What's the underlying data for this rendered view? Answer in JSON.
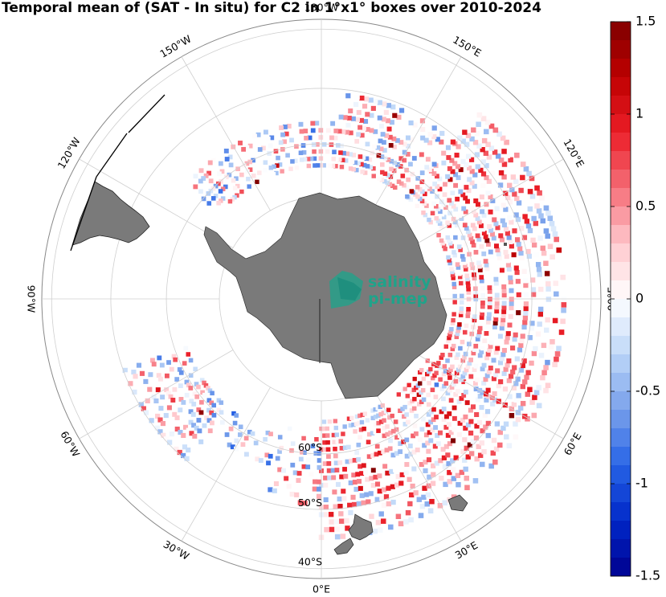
{
  "title": "Temporal mean of (SAT - In situ) for C2 in 1°x1° boxes over 2010-2024",
  "map": {
    "projection": "south-polar-stereographic",
    "lon_labels": [
      {
        "text": "0°E",
        "lon": 0
      },
      {
        "text": "30°E",
        "lon": 30
      },
      {
        "text": "60°E",
        "lon": 60
      },
      {
        "text": "90°E",
        "lon": 90
      },
      {
        "text": "120°E",
        "lon": 120
      },
      {
        "text": "150°E",
        "lon": 150
      },
      {
        "text": "180°W",
        "lon": 180
      },
      {
        "text": "150°W",
        "lon": -150
      },
      {
        "text": "120°W",
        "lon": -120
      },
      {
        "text": "90°W",
        "lon": -90
      },
      {
        "text": "60°W",
        "lon": -60
      },
      {
        "text": "30°W",
        "lon": -30
      }
    ],
    "lat_labels": [
      {
        "text": "60°S",
        "lat": -60
      },
      {
        "text": "50°S",
        "lat": -50
      },
      {
        "text": "40°S",
        "lat": -40
      }
    ],
    "land_color": "#7a7a7a",
    "grid_color": "#cfcfcf"
  },
  "colorbar": {
    "min": -1.5,
    "max": 1.5,
    "ticks": [
      {
        "value": 1.5,
        "label": "1.5"
      },
      {
        "value": 1,
        "label": "1"
      },
      {
        "value": 0.5,
        "label": "0.5"
      },
      {
        "value": 0,
        "label": "0"
      },
      {
        "value": -0.5,
        "label": "-0.5"
      },
      {
        "value": -1,
        "label": "-1"
      },
      {
        "value": -1.5,
        "label": "-1.5"
      }
    ],
    "colors": {
      "negative_end": "#00008f",
      "mid": "#ffffff",
      "positive_end": "#800000"
    }
  },
  "logo": {
    "line1": "salinity",
    "line2": "pi-mep",
    "color": "#1fa38a"
  }
}
